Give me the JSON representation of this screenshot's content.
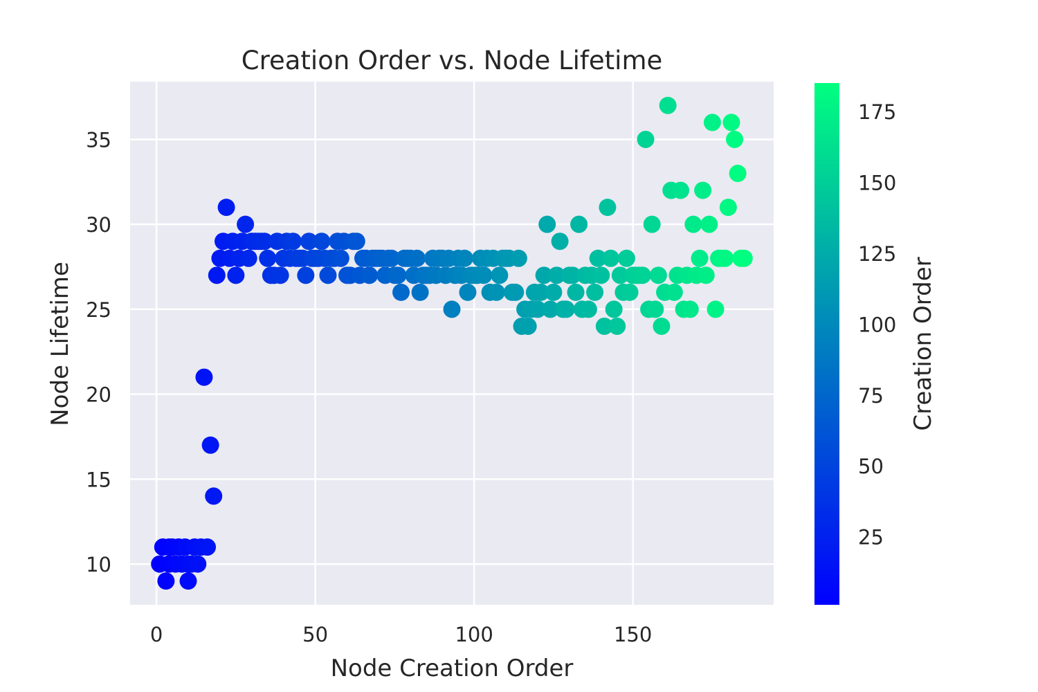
{
  "chart_data": {
    "type": "scatter",
    "title": "Creation Order vs. Node Lifetime",
    "xlabel": "Node Creation Order",
    "ylabel": "Node Lifetime",
    "xlim": [
      -8.3,
      194.3
    ],
    "ylim": [
      7.6,
      38.4
    ],
    "xticks": [
      0,
      50,
      100,
      150
    ],
    "yticks": [
      10,
      15,
      20,
      25,
      30,
      35
    ],
    "grid": true,
    "background": "#eaeaf2",
    "colormap": "winter",
    "colorbar": {
      "label": "Creation Order",
      "range": [
        1,
        185
      ],
      "ticks": [
        25,
        50,
        75,
        100,
        125,
        150,
        175
      ],
      "color_low": "#0000ff",
      "color_high": "#00ff80"
    },
    "points": [
      [
        1,
        10
      ],
      [
        2,
        11
      ],
      [
        3,
        9
      ],
      [
        4,
        10
      ],
      [
        4,
        11
      ],
      [
        5,
        11
      ],
      [
        6,
        10
      ],
      [
        7,
        11
      ],
      [
        8,
        10
      ],
      [
        9,
        11
      ],
      [
        10,
        10
      ],
      [
        10,
        9
      ],
      [
        11,
        10
      ],
      [
        12,
        11
      ],
      [
        13,
        10
      ],
      [
        14,
        11
      ],
      [
        15,
        21
      ],
      [
        16,
        11
      ],
      [
        17,
        17
      ],
      [
        18,
        14
      ],
      [
        19,
        27
      ],
      [
        20,
        28
      ],
      [
        21,
        29
      ],
      [
        22,
        31
      ],
      [
        23,
        28
      ],
      [
        24,
        29
      ],
      [
        25,
        27
      ],
      [
        26,
        28
      ],
      [
        27,
        29
      ],
      [
        28,
        30
      ],
      [
        29,
        28
      ],
      [
        30,
        29
      ],
      [
        31,
        29
      ],
      [
        32,
        29
      ],
      [
        33,
        29
      ],
      [
        34,
        29
      ],
      [
        35,
        28
      ],
      [
        36,
        27
      ],
      [
        37,
        27
      ],
      [
        38,
        29
      ],
      [
        39,
        27
      ],
      [
        40,
        28
      ],
      [
        41,
        29
      ],
      [
        42,
        28
      ],
      [
        43,
        29
      ],
      [
        44,
        28
      ],
      [
        45,
        28
      ],
      [
        46,
        28
      ],
      [
        47,
        27
      ],
      [
        48,
        29
      ],
      [
        49,
        28
      ],
      [
        50,
        28
      ],
      [
        51,
        28
      ],
      [
        52,
        29
      ],
      [
        53,
        28
      ],
      [
        54,
        27
      ],
      [
        55,
        28
      ],
      [
        56,
        28
      ],
      [
        57,
        29
      ],
      [
        58,
        28
      ],
      [
        59,
        29
      ],
      [
        60,
        27
      ],
      [
        61,
        27
      ],
      [
        62,
        29
      ],
      [
        63,
        29
      ],
      [
        64,
        27
      ],
      [
        65,
        28
      ],
      [
        66,
        28
      ],
      [
        67,
        27
      ],
      [
        68,
        28
      ],
      [
        69,
        28
      ],
      [
        70,
        28
      ],
      [
        71,
        28
      ],
      [
        72,
        27
      ],
      [
        73,
        28
      ],
      [
        74,
        28
      ],
      [
        75,
        27
      ],
      [
        76,
        27
      ],
      [
        77,
        26
      ],
      [
        78,
        28
      ],
      [
        79,
        28
      ],
      [
        80,
        28
      ],
      [
        81,
        27
      ],
      [
        82,
        28
      ],
      [
        83,
        26
      ],
      [
        84,
        27
      ],
      [
        85,
        27
      ],
      [
        86,
        27
      ],
      [
        87,
        28
      ],
      [
        88,
        27
      ],
      [
        89,
        28
      ],
      [
        90,
        28
      ],
      [
        91,
        27
      ],
      [
        92,
        28
      ],
      [
        93,
        25
      ],
      [
        94,
        27
      ],
      [
        95,
        28
      ],
      [
        96,
        27
      ],
      [
        97,
        28
      ],
      [
        98,
        26
      ],
      [
        99,
        27
      ],
      [
        100,
        27
      ],
      [
        101,
        27
      ],
      [
        102,
        28
      ],
      [
        103,
        27
      ],
      [
        104,
        28
      ],
      [
        105,
        26
      ],
      [
        106,
        28
      ],
      [
        107,
        26
      ],
      [
        108,
        27
      ],
      [
        109,
        28
      ],
      [
        110,
        28
      ],
      [
        111,
        28
      ],
      [
        112,
        26
      ],
      [
        113,
        26
      ],
      [
        114,
        28
      ],
      [
        115,
        24
      ],
      [
        116,
        25
      ],
      [
        117,
        24
      ],
      [
        118,
        25
      ],
      [
        119,
        26
      ],
      [
        120,
        25
      ],
      [
        121,
        26
      ],
      [
        122,
        27
      ],
      [
        123,
        30
      ],
      [
        124,
        25
      ],
      [
        125,
        26
      ],
      [
        126,
        27
      ],
      [
        127,
        29
      ],
      [
        128,
        25
      ],
      [
        129,
        25
      ],
      [
        130,
        27
      ],
      [
        131,
        27
      ],
      [
        132,
        26
      ],
      [
        133,
        30
      ],
      [
        134,
        25
      ],
      [
        135,
        27
      ],
      [
        136,
        25
      ],
      [
        137,
        27
      ],
      [
        138,
        26
      ],
      [
        139,
        28
      ],
      [
        140,
        27
      ],
      [
        141,
        24
      ],
      [
        142,
        31
      ],
      [
        143,
        28
      ],
      [
        144,
        25
      ],
      [
        145,
        24
      ],
      [
        146,
        27
      ],
      [
        147,
        26
      ],
      [
        148,
        28
      ],
      [
        149,
        26
      ],
      [
        150,
        27
      ],
      [
        151,
        27
      ],
      [
        152,
        27
      ],
      [
        153,
        27
      ],
      [
        154,
        35
      ],
      [
        155,
        25
      ],
      [
        156,
        30
      ],
      [
        157,
        25
      ],
      [
        158,
        27
      ],
      [
        159,
        24
      ],
      [
        160,
        26
      ],
      [
        161,
        37
      ],
      [
        162,
        32
      ],
      [
        163,
        26
      ],
      [
        164,
        27
      ],
      [
        165,
        32
      ],
      [
        166,
        25
      ],
      [
        167,
        27
      ],
      [
        168,
        25
      ],
      [
        169,
        30
      ],
      [
        170,
        27
      ],
      [
        171,
        28
      ],
      [
        172,
        32
      ],
      [
        173,
        27
      ],
      [
        174,
        30
      ],
      [
        175,
        36
      ],
      [
        176,
        25
      ],
      [
        177,
        28
      ],
      [
        178,
        28
      ],
      [
        179,
        28
      ],
      [
        180,
        31
      ],
      [
        181,
        36
      ],
      [
        182,
        35
      ],
      [
        183,
        33
      ],
      [
        184,
        28
      ],
      [
        185,
        28
      ]
    ]
  }
}
